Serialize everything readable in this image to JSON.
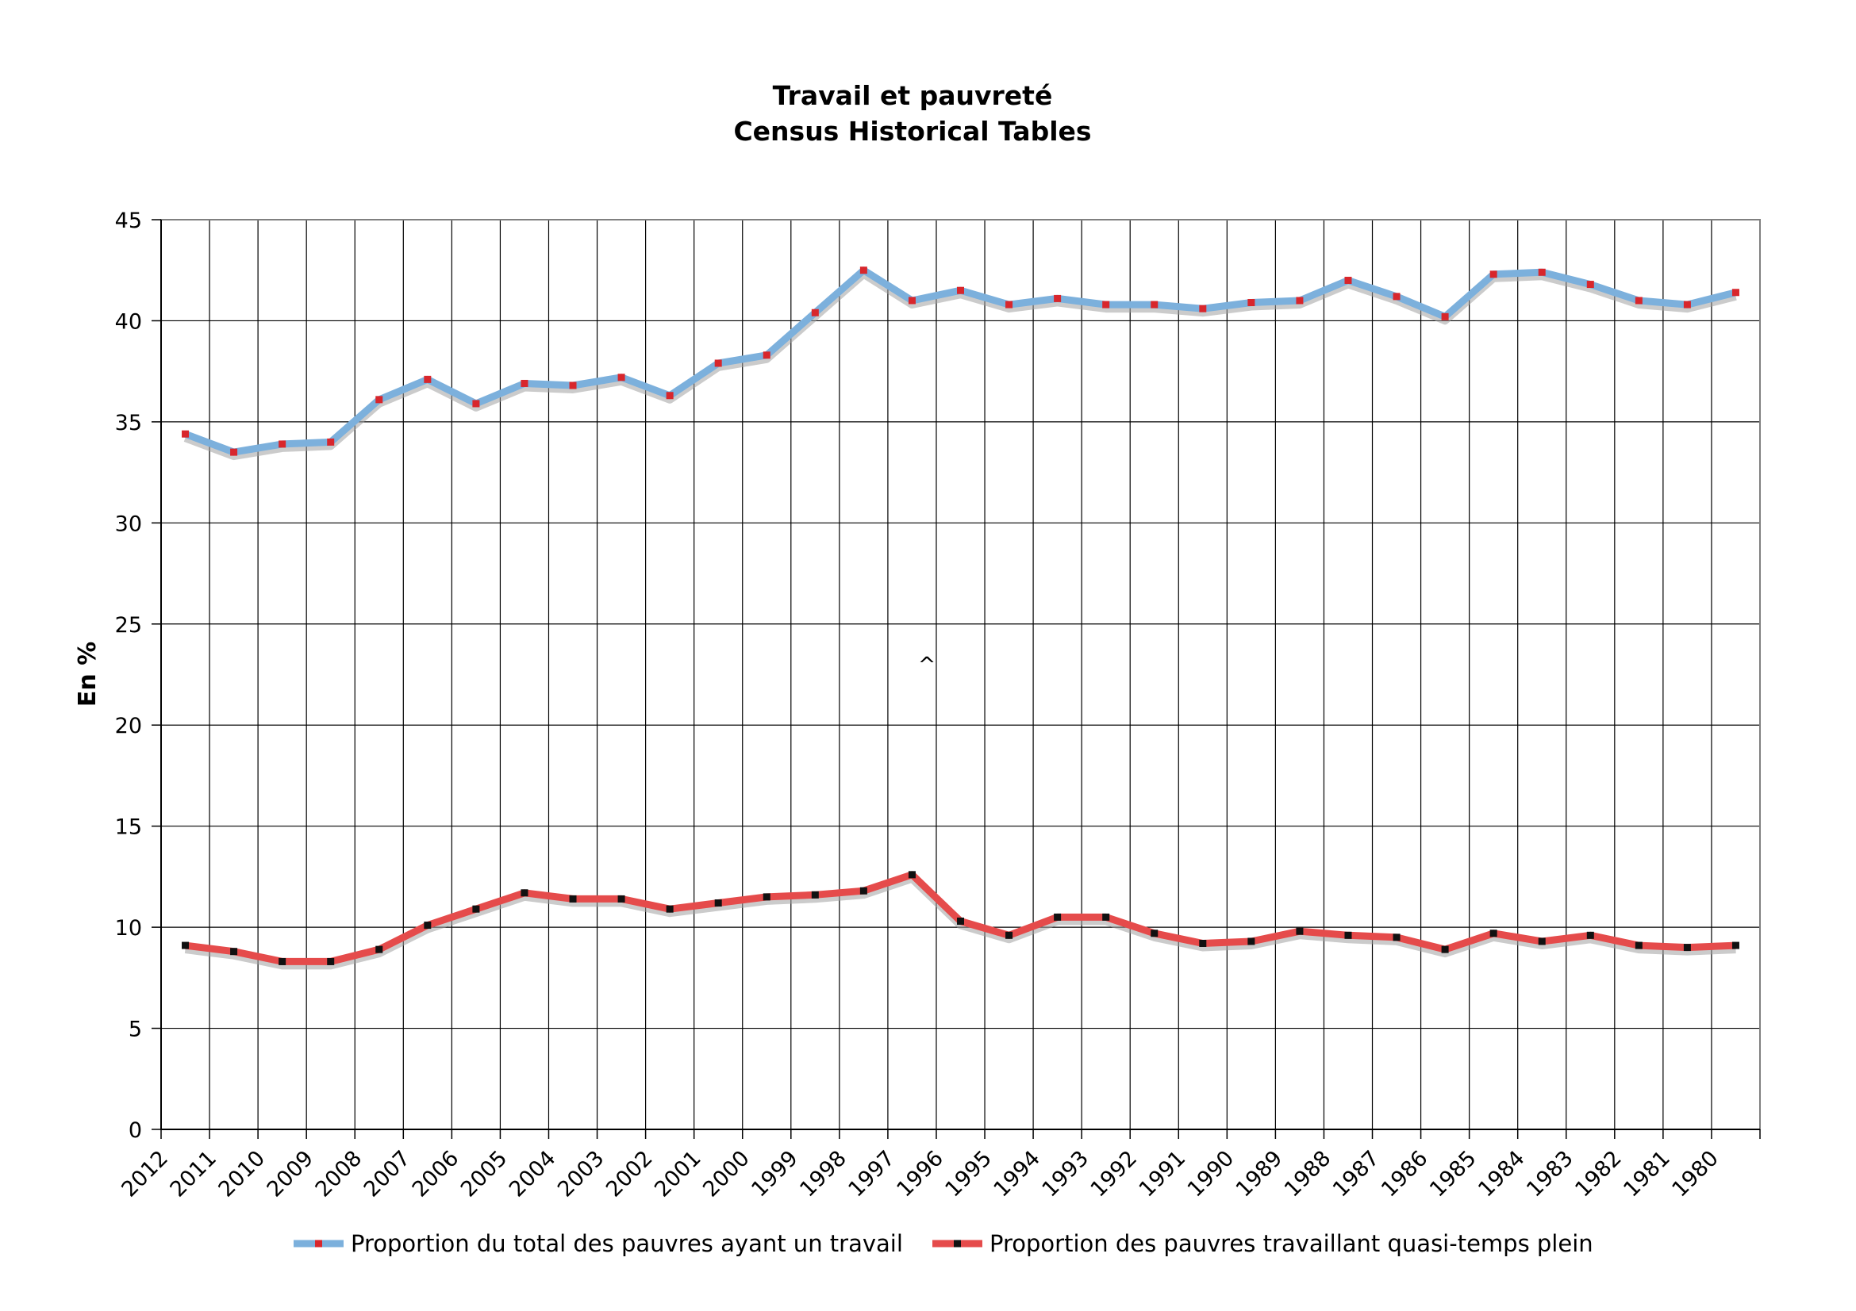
{
  "chart_data": {
    "type": "line",
    "title": "Travail et pauvreté",
    "subtitle": "Census Historical Tables",
    "xlabel": "",
    "ylabel": "En %",
    "ylim": [
      0,
      45
    ],
    "yticks": [
      0,
      5,
      10,
      15,
      20,
      25,
      30,
      35,
      40,
      45
    ],
    "grid": true,
    "legend": "bottom",
    "annotation": "^",
    "categories": [
      "2012",
      "2011",
      "2010",
      "2009",
      "2008",
      "2007",
      "2006",
      "2005",
      "2004",
      "2003",
      "2002",
      "2001",
      "2000",
      "1999",
      "1998",
      "1997",
      "1996",
      "1995",
      "1994",
      "1993",
      "1992",
      "1991",
      "1990",
      "1989",
      "1988",
      "1987",
      "1986",
      "1985",
      "1984",
      "1983",
      "1982",
      "1981",
      "1980"
    ],
    "series": [
      {
        "name": "Proportion du total des pauvres ayant un travail",
        "line_color": "#7cb0dc",
        "marker_color": "#d8262c",
        "values": [
          34.4,
          33.5,
          33.9,
          34.0,
          36.1,
          37.1,
          35.9,
          36.9,
          36.8,
          37.2,
          36.3,
          37.9,
          38.3,
          40.4,
          42.5,
          41.0,
          41.5,
          40.8,
          41.1,
          40.8,
          40.8,
          40.6,
          40.9,
          41.0,
          42.0,
          41.2,
          40.2,
          42.3,
          42.4,
          41.8,
          41.0,
          40.8,
          41.4
        ]
      },
      {
        "name": "Proportion des pauvres travaillant quasi-temps plein",
        "line_color": "#e54b4b",
        "marker_color": "#111111",
        "values": [
          9.1,
          8.8,
          8.3,
          8.3,
          8.9,
          10.1,
          10.9,
          11.7,
          11.4,
          11.4,
          10.9,
          11.2,
          11.5,
          11.6,
          11.8,
          12.6,
          10.3,
          9.6,
          10.5,
          10.5,
          9.7,
          9.2,
          9.3,
          9.8,
          9.6,
          9.5,
          8.9,
          9.7,
          9.3,
          9.6,
          9.1,
          9.0,
          9.1
        ]
      }
    ]
  }
}
